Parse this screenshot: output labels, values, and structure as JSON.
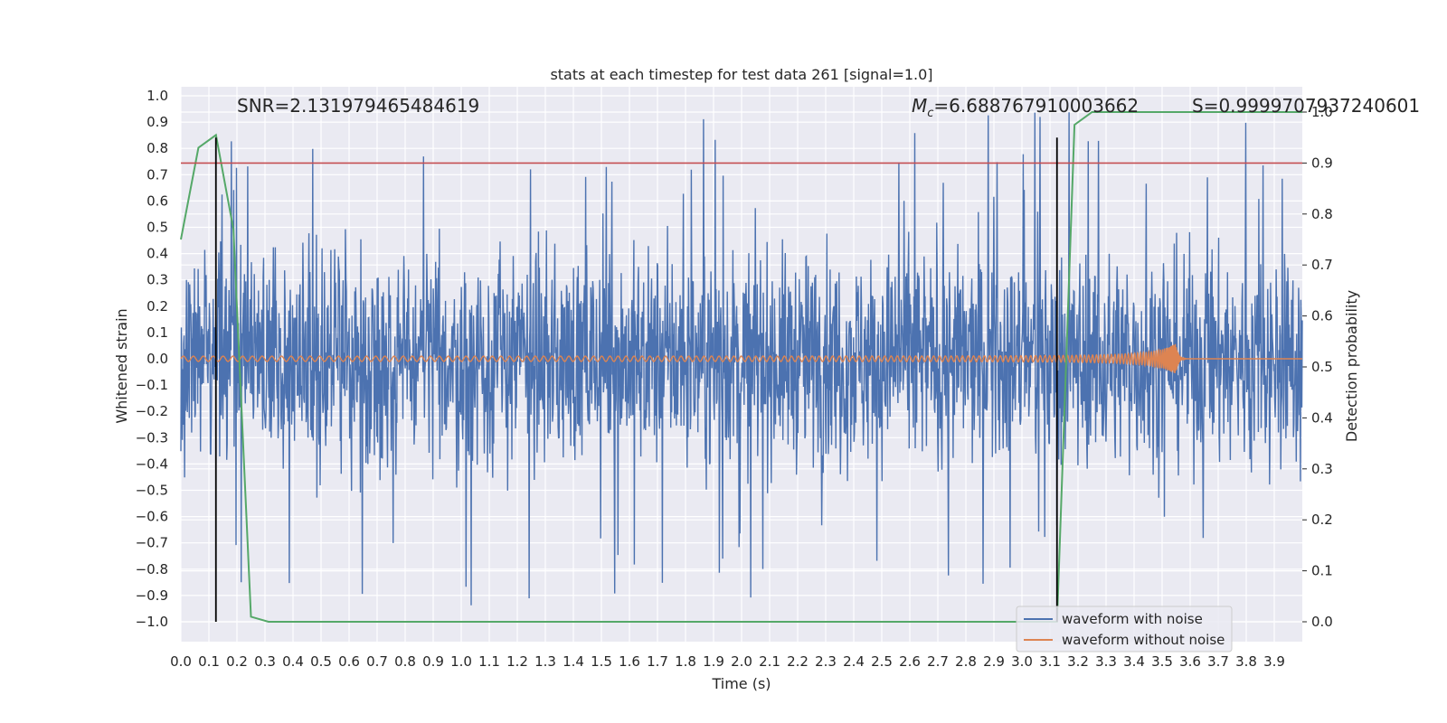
{
  "chart_data": {
    "type": "line",
    "title": "stats at each timestep for test data 261 [signal=1.0]",
    "xlabel": "Time (s)",
    "ylabel": "Whitened strain",
    "ylabel_right": "Detection probability",
    "xlim": [
      0.0,
      4.0
    ],
    "ylim": [
      -1.1,
      1.1
    ],
    "ylim_right": [
      -0.05,
      1.0
    ],
    "x_ticks": [
      "0.0",
      "0.1",
      "0.2",
      "0.3",
      "0.4",
      "0.5",
      "0.6",
      "0.7",
      "0.8",
      "0.9",
      "1.0",
      "1.1",
      "1.2",
      "1.3",
      "1.4",
      "1.5",
      "1.6",
      "1.7",
      "1.8",
      "1.9",
      "2.0",
      "2.1",
      "2.2",
      "2.3",
      "2.4",
      "2.5",
      "2.6",
      "2.7",
      "2.8",
      "2.9",
      "3.0",
      "3.1",
      "3.2",
      "3.3",
      "3.4",
      "3.5",
      "3.6",
      "3.7",
      "3.8",
      "3.9"
    ],
    "y_ticks": [
      "1.0",
      "0.9",
      "0.8",
      "0.7",
      "0.6",
      "0.5",
      "0.4",
      "0.3",
      "0.2",
      "0.1",
      "0.0",
      "-0.1",
      "-0.2",
      "-0.3",
      "-0.4",
      "-0.5",
      "-0.6",
      "-0.7",
      "-0.8",
      "-0.9",
      "-1.0"
    ],
    "y_right_ticks": [
      "0.0",
      "0.1",
      "0.2",
      "0.3",
      "0.4",
      "0.5",
      "0.6",
      "0.7",
      "0.8",
      "0.9",
      "1.0"
    ],
    "annotations": {
      "snr": "SNR=2.131979465484619",
      "mc_symbol": "M",
      "mc_sub": "c",
      "mc_value": "=6.688767910003662",
      "s": "S=0.9999707937240601"
    },
    "threshold": {
      "value": 0.9,
      "axis": "right",
      "color": "#c44e52"
    },
    "vlines": [
      0.125,
      3.125
    ],
    "series": [
      {
        "name": "waveform with noise",
        "color": "#4c72b0",
        "kind": "noise",
        "amplitude_typical": 0.4,
        "amplitude_peak": 0.95
      },
      {
        "name": "waveform without noise",
        "color": "#dd8452",
        "kind": "chirp",
        "start_amplitude": 0.01,
        "peak_amplitude": 0.06,
        "merger_time": 3.55
      },
      {
        "name": "detection probability",
        "color": "#55a868",
        "axis": "right",
        "x": [
          0.0,
          0.0625,
          0.125,
          0.1875,
          0.25,
          0.3125,
          2.5,
          3.0,
          3.125,
          3.1875,
          3.25,
          3.3125,
          3.5,
          4.0
        ],
        "values": [
          0.75,
          0.93,
          0.955,
          0.77,
          0.01,
          0.0,
          0.0,
          0.0,
          0.0,
          0.975,
          1.0,
          1.0,
          1.0,
          1.0
        ]
      }
    ],
    "legend": {
      "placement": "lower-right",
      "entries": [
        "waveform with noise",
        "waveform without noise"
      ]
    },
    "grid": true
  }
}
